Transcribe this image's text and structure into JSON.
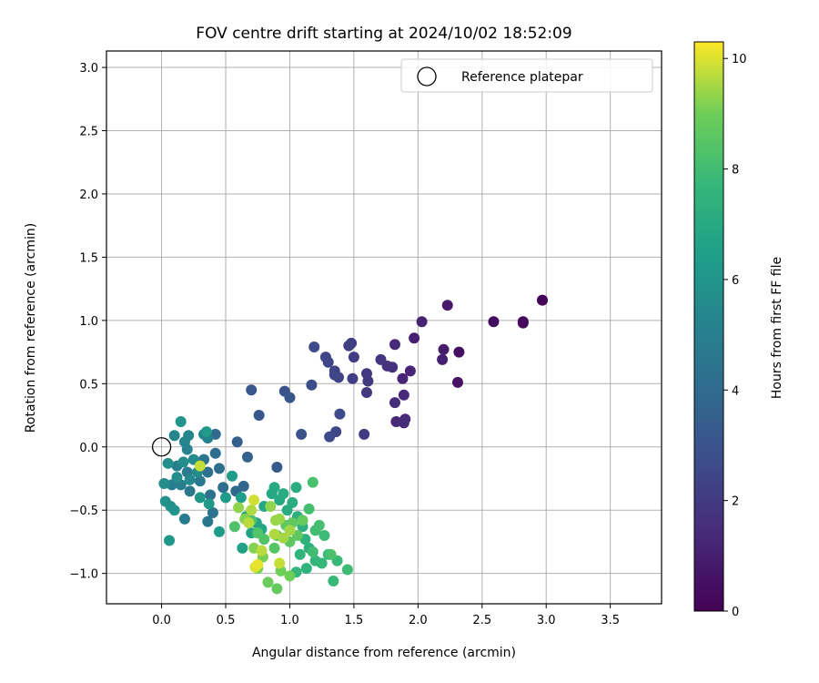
{
  "chart_data": {
    "type": "scatter",
    "title": "FOV centre drift starting at 2024/10/02 18:52:09",
    "xlabel": "Angular distance from reference (arcmin)",
    "ylabel": "Rotation from reference (arcmin)",
    "xlim": [
      -0.43,
      3.9
    ],
    "ylim": [
      -1.24,
      3.13
    ],
    "xticks": [
      0.0,
      0.5,
      1.0,
      1.5,
      2.0,
      2.5,
      3.0,
      3.5
    ],
    "yticks": [
      -1.0,
      -0.5,
      0.0,
      0.5,
      1.0,
      1.5,
      2.0,
      2.5,
      3.0
    ],
    "xtick_labels": [
      "0.0",
      "0.5",
      "1.0",
      "1.5",
      "2.0",
      "2.5",
      "3.0",
      "3.5"
    ],
    "ytick_labels": [
      "−1.0",
      "−0.5",
      "0.0",
      "0.5",
      "1.0",
      "1.5",
      "2.0",
      "2.5",
      "3.0"
    ],
    "grid": true,
    "legend": {
      "position": "top-right",
      "entries": [
        "Reference platepar"
      ]
    },
    "reference_point": {
      "name": "Reference platepar",
      "x": 0.0,
      "y": 0.0
    },
    "colorbar": {
      "label": "Hours from first FF file",
      "range": [
        0,
        10.3
      ],
      "ticks": [
        0,
        2,
        4,
        6,
        8,
        10
      ],
      "tick_labels": [
        "0",
        "2",
        "4",
        "6",
        "8",
        "10"
      ],
      "colormap": "viridis"
    },
    "points": [
      {
        "x": 2.97,
        "y": 1.16,
        "h": 0.1
      },
      {
        "x": 2.82,
        "y": 0.99,
        "h": 0.2
      },
      {
        "x": 2.82,
        "y": 0.98,
        "h": 0.3
      },
      {
        "x": 2.59,
        "y": 0.99,
        "h": 0.4
      },
      {
        "x": 2.32,
        "y": 0.75,
        "h": 0.5
      },
      {
        "x": 2.31,
        "y": 0.51,
        "h": 0.6
      },
      {
        "x": 2.23,
        "y": 1.12,
        "h": 0.8
      },
      {
        "x": 2.2,
        "y": 0.77,
        "h": 0.9
      },
      {
        "x": 2.19,
        "y": 0.69,
        "h": 1.0
      },
      {
        "x": 1.97,
        "y": 0.86,
        "h": 1.0
      },
      {
        "x": 2.03,
        "y": 0.99,
        "h": 1.1
      },
      {
        "x": 1.94,
        "y": 0.6,
        "h": 1.2
      },
      {
        "x": 1.89,
        "y": 0.41,
        "h": 1.3
      },
      {
        "x": 1.88,
        "y": 0.54,
        "h": 1.2
      },
      {
        "x": 1.82,
        "y": 0.81,
        "h": 1.4
      },
      {
        "x": 1.82,
        "y": 0.35,
        "h": 1.5
      },
      {
        "x": 1.83,
        "y": 0.2,
        "h": 1.3
      },
      {
        "x": 1.9,
        "y": 0.22,
        "h": 1.4
      },
      {
        "x": 1.89,
        "y": 0.19,
        "h": 1.5
      },
      {
        "x": 1.8,
        "y": 0.63,
        "h": 1.6
      },
      {
        "x": 1.76,
        "y": 0.64,
        "h": 1.7
      },
      {
        "x": 1.71,
        "y": 0.69,
        "h": 1.8
      },
      {
        "x": 1.6,
        "y": 0.58,
        "h": 1.9
      },
      {
        "x": 1.61,
        "y": 0.52,
        "h": 2.0
      },
      {
        "x": 1.6,
        "y": 0.43,
        "h": 1.9
      },
      {
        "x": 1.58,
        "y": 0.1,
        "h": 2.0
      },
      {
        "x": 1.48,
        "y": 0.82,
        "h": 2.1
      },
      {
        "x": 1.46,
        "y": 0.8,
        "h": 2.2
      },
      {
        "x": 1.5,
        "y": 0.71,
        "h": 2.1
      },
      {
        "x": 1.49,
        "y": 0.54,
        "h": 2.2
      },
      {
        "x": 1.38,
        "y": 0.55,
        "h": 2.3
      },
      {
        "x": 1.35,
        "y": 0.6,
        "h": 2.3
      },
      {
        "x": 1.3,
        "y": 0.67,
        "h": 2.4
      },
      {
        "x": 1.28,
        "y": 0.71,
        "h": 2.4
      },
      {
        "x": 1.35,
        "y": 0.57,
        "h": 2.5
      },
      {
        "x": 1.39,
        "y": 0.26,
        "h": 2.6
      },
      {
        "x": 1.36,
        "y": 0.12,
        "h": 2.5
      },
      {
        "x": 1.31,
        "y": 0.08,
        "h": 2.6
      },
      {
        "x": 1.19,
        "y": 0.79,
        "h": 2.7
      },
      {
        "x": 1.17,
        "y": 0.49,
        "h": 2.8
      },
      {
        "x": 1.09,
        "y": 0.1,
        "h": 3.0
      },
      {
        "x": 0.96,
        "y": 0.44,
        "h": 3.0
      },
      {
        "x": 1.0,
        "y": 0.39,
        "h": 3.1
      },
      {
        "x": 0.7,
        "y": 0.45,
        "h": 3.2
      },
      {
        "x": 0.76,
        "y": 0.25,
        "h": 3.2
      },
      {
        "x": 0.9,
        "y": -0.16,
        "h": 3.3
      },
      {
        "x": 0.59,
        "y": 0.04,
        "h": 3.5
      },
      {
        "x": 0.67,
        "y": -0.08,
        "h": 3.6
      },
      {
        "x": 0.64,
        "y": -0.31,
        "h": 3.8
      },
      {
        "x": 0.58,
        "y": -0.35,
        "h": 3.9
      },
      {
        "x": 0.42,
        "y": 0.1,
        "h": 4.0
      },
      {
        "x": 0.42,
        "y": -0.05,
        "h": 4.1
      },
      {
        "x": 0.45,
        "y": -0.17,
        "h": 4.2
      },
      {
        "x": 0.48,
        "y": -0.32,
        "h": 4.2
      },
      {
        "x": 0.36,
        "y": -0.2,
        "h": 4.3
      },
      {
        "x": 0.38,
        "y": -0.38,
        "h": 4.3
      },
      {
        "x": 0.4,
        "y": -0.52,
        "h": 4.4
      },
      {
        "x": 0.36,
        "y": -0.59,
        "h": 4.5
      },
      {
        "x": 0.33,
        "y": -0.1,
        "h": 4.5
      },
      {
        "x": 0.3,
        "y": -0.27,
        "h": 4.6
      },
      {
        "x": 0.22,
        "y": -0.35,
        "h": 4.6
      },
      {
        "x": 0.2,
        "y": -0.2,
        "h": 4.7
      },
      {
        "x": 0.18,
        "y": -0.57,
        "h": 4.8
      },
      {
        "x": 0.15,
        "y": -0.3,
        "h": 4.9
      },
      {
        "x": 0.12,
        "y": -0.15,
        "h": 5.0
      },
      {
        "x": 0.08,
        "y": -0.3,
        "h": 5.0
      },
      {
        "x": 0.36,
        "y": 0.07,
        "h": 5.1
      },
      {
        "x": 0.33,
        "y": 0.1,
        "h": 5.2
      },
      {
        "x": 0.2,
        "y": -0.02,
        "h": 5.2
      },
      {
        "x": 0.18,
        "y": 0.04,
        "h": 5.3
      },
      {
        "x": 0.1,
        "y": 0.09,
        "h": 5.3
      },
      {
        "x": 0.21,
        "y": 0.09,
        "h": 5.4
      },
      {
        "x": 0.25,
        "y": -0.1,
        "h": 5.5
      },
      {
        "x": 0.28,
        "y": -0.2,
        "h": 5.6
      },
      {
        "x": 0.22,
        "y": -0.26,
        "h": 5.5
      },
      {
        "x": 0.17,
        "y": -0.12,
        "h": 5.7
      },
      {
        "x": 0.12,
        "y": -0.24,
        "h": 5.6
      },
      {
        "x": 0.05,
        "y": -0.13,
        "h": 5.8
      },
      {
        "x": 0.02,
        "y": -0.29,
        "h": 5.7
      },
      {
        "x": 0.03,
        "y": -0.43,
        "h": 5.9
      },
      {
        "x": 0.07,
        "y": -0.47,
        "h": 5.8
      },
      {
        "x": 0.1,
        "y": -0.5,
        "h": 6.0
      },
      {
        "x": 0.06,
        "y": -0.74,
        "h": 6.1
      },
      {
        "x": 0.15,
        "y": 0.2,
        "h": 6.0
      },
      {
        "x": 0.35,
        "y": 0.12,
        "h": 6.2
      },
      {
        "x": 0.3,
        "y": -0.4,
        "h": 6.1
      },
      {
        "x": 0.37,
        "y": -0.45,
        "h": 6.2
      },
      {
        "x": 0.5,
        "y": -0.4,
        "h": 6.3
      },
      {
        "x": 0.45,
        "y": -0.67,
        "h": 6.4
      },
      {
        "x": 0.55,
        "y": -0.23,
        "h": 6.4
      },
      {
        "x": 0.62,
        "y": -0.4,
        "h": 6.5
      },
      {
        "x": 0.66,
        "y": -0.55,
        "h": 6.6
      },
      {
        "x": 0.63,
        "y": -0.8,
        "h": 6.6
      },
      {
        "x": 0.7,
        "y": -0.68,
        "h": 6.7
      },
      {
        "x": 0.74,
        "y": -0.6,
        "h": 6.8
      },
      {
        "x": 0.78,
        "y": -0.65,
        "h": 6.8
      },
      {
        "x": 0.8,
        "y": -0.47,
        "h": 6.9
      },
      {
        "x": 0.86,
        "y": -0.37,
        "h": 6.9
      },
      {
        "x": 0.88,
        "y": -0.32,
        "h": 7.0
      },
      {
        "x": 0.92,
        "y": -0.42,
        "h": 7.0
      },
      {
        "x": 0.95,
        "y": -0.37,
        "h": 7.1
      },
      {
        "x": 0.98,
        "y": -0.5,
        "h": 7.1
      },
      {
        "x": 1.02,
        "y": -0.44,
        "h": 7.2
      },
      {
        "x": 1.05,
        "y": -0.32,
        "h": 7.2
      },
      {
        "x": 1.06,
        "y": -0.55,
        "h": 7.3
      },
      {
        "x": 1.1,
        "y": -0.63,
        "h": 7.3
      },
      {
        "x": 1.12,
        "y": -0.73,
        "h": 7.4
      },
      {
        "x": 1.15,
        "y": -0.8,
        "h": 7.4
      },
      {
        "x": 1.08,
        "y": -0.85,
        "h": 7.5
      },
      {
        "x": 1.13,
        "y": -0.96,
        "h": 7.5
      },
      {
        "x": 1.05,
        "y": -0.99,
        "h": 7.6
      },
      {
        "x": 1.2,
        "y": -0.9,
        "h": 7.6
      },
      {
        "x": 1.25,
        "y": -0.92,
        "h": 7.7
      },
      {
        "x": 1.3,
        "y": -0.85,
        "h": 7.7
      },
      {
        "x": 1.34,
        "y": -1.06,
        "h": 7.8
      },
      {
        "x": 1.37,
        "y": -0.9,
        "h": 7.8
      },
      {
        "x": 1.45,
        "y": -0.97,
        "h": 7.9
      },
      {
        "x": 1.27,
        "y": -0.7,
        "h": 7.9
      },
      {
        "x": 1.2,
        "y": -0.66,
        "h": 8.0
      },
      {
        "x": 1.18,
        "y": -0.83,
        "h": 8.0
      },
      {
        "x": 1.23,
        "y": -0.62,
        "h": 8.1
      },
      {
        "x": 1.15,
        "y": -0.49,
        "h": 8.1
      },
      {
        "x": 1.18,
        "y": -0.28,
        "h": 8.2
      },
      {
        "x": 1.32,
        "y": -0.85,
        "h": 8.2
      },
      {
        "x": 0.57,
        "y": -0.63,
        "h": 8.3
      },
      {
        "x": 0.7,
        "y": -0.58,
        "h": 8.3
      },
      {
        "x": 0.75,
        "y": -0.68,
        "h": 8.4
      },
      {
        "x": 0.8,
        "y": -0.73,
        "h": 8.4
      },
      {
        "x": 0.88,
        "y": -0.8,
        "h": 8.5
      },
      {
        "x": 0.9,
        "y": -0.7,
        "h": 8.5
      },
      {
        "x": 0.97,
        "y": -0.62,
        "h": 8.6
      },
      {
        "x": 1.0,
        "y": -0.75,
        "h": 8.6
      },
      {
        "x": 1.02,
        "y": -0.6,
        "h": 8.7
      },
      {
        "x": 1.06,
        "y": -0.7,
        "h": 8.7
      },
      {
        "x": 1.1,
        "y": -0.58,
        "h": 8.8
      },
      {
        "x": 0.9,
        "y": -1.12,
        "h": 8.8
      },
      {
        "x": 0.83,
        "y": -1.07,
        "h": 8.9
      },
      {
        "x": 1.0,
        "y": -1.02,
        "h": 9.0
      },
      {
        "x": 0.93,
        "y": -0.98,
        "h": 9.0
      },
      {
        "x": 0.75,
        "y": -0.96,
        "h": 9.1
      },
      {
        "x": 0.79,
        "y": -0.87,
        "h": 9.1
      },
      {
        "x": 0.72,
        "y": -0.8,
        "h": 9.2
      },
      {
        "x": 0.65,
        "y": -0.57,
        "h": 9.2
      },
      {
        "x": 0.6,
        "y": -0.48,
        "h": 9.3
      },
      {
        "x": 0.85,
        "y": -0.47,
        "h": 9.3
      },
      {
        "x": 0.89,
        "y": -0.58,
        "h": 9.4
      },
      {
        "x": 0.92,
        "y": -0.57,
        "h": 9.4
      },
      {
        "x": 1.0,
        "y": -0.66,
        "h": 9.5
      },
      {
        "x": 0.95,
        "y": -0.72,
        "h": 9.5
      },
      {
        "x": 0.88,
        "y": -0.69,
        "h": 9.6
      },
      {
        "x": 0.7,
        "y": -0.5,
        "h": 9.6
      },
      {
        "x": 0.68,
        "y": -0.6,
        "h": 9.7
      },
      {
        "x": 0.78,
        "y": -0.82,
        "h": 9.7
      },
      {
        "x": 0.92,
        "y": -0.92,
        "h": 9.8
      },
      {
        "x": 0.3,
        "y": -0.15,
        "h": 9.8
      },
      {
        "x": 0.72,
        "y": -0.42,
        "h": 9.9
      },
      {
        "x": 0.73,
        "y": -0.95,
        "h": 10.0
      },
      {
        "x": 0.75,
        "y": -0.93,
        "h": 10.1
      }
    ]
  }
}
